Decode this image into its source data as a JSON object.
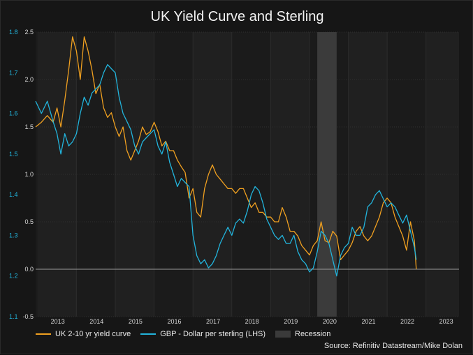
{
  "chart_data": {
    "type": "line",
    "title": "UK Yield Curve and Sterling",
    "source": "Source: Refinitiv Datastream/Mike Dolan",
    "x_ticks": [
      "2013",
      "2014",
      "2015",
      "2016",
      "2017",
      "2018",
      "2019",
      "2020",
      "2021",
      "2022",
      "2023"
    ],
    "xlim": [
      2012.45,
      2023.35
    ],
    "left_axis": {
      "label": "GBP - Dollar per sterling (LHS)",
      "ylim": [
        1.1,
        1.8
      ],
      "ticks": [
        "1.1",
        "1.2",
        "1.3",
        "1.4",
        "1.5",
        "1.6",
        "1.7",
        "1.8"
      ],
      "tick_values": [
        1.1,
        1.2,
        1.3,
        1.4,
        1.5,
        1.6,
        1.7,
        1.8
      ]
    },
    "right_axis": {
      "ylim": [
        -0.5,
        2.5
      ],
      "ticks": [
        "-0.5",
        "0.0",
        "0.5",
        "1.0",
        "1.5",
        "2.0",
        "2.5"
      ],
      "tick_values": [
        -0.5,
        0.0,
        0.5,
        1.0,
        1.5,
        2.0,
        2.5
      ]
    },
    "recession": {
      "label": "Recession",
      "start": 2019.7,
      "end": 2020.2
    },
    "series": [
      {
        "name": "UK 2-10 yr yield curve",
        "axis": "right",
        "color": "#f0a020",
        "x": [
          2012.45,
          2012.6,
          2012.75,
          2012.9,
          2013.0,
          2013.1,
          2013.2,
          2013.3,
          2013.4,
          2013.5,
          2013.6,
          2013.7,
          2013.8,
          2013.9,
          2014.0,
          2014.1,
          2014.2,
          2014.3,
          2014.4,
          2014.5,
          2014.6,
          2014.7,
          2014.8,
          2014.9,
          2015.0,
          2015.1,
          2015.2,
          2015.3,
          2015.4,
          2015.5,
          2015.6,
          2015.7,
          2015.8,
          2015.9,
          2016.0,
          2016.1,
          2016.2,
          2016.3,
          2016.4,
          2016.5,
          2016.6,
          2016.7,
          2016.8,
          2016.9,
          2017.0,
          2017.1,
          2017.2,
          2017.3,
          2017.4,
          2017.5,
          2017.6,
          2017.7,
          2017.8,
          2017.9,
          2018.0,
          2018.1,
          2018.2,
          2018.3,
          2018.4,
          2018.5,
          2018.6,
          2018.7,
          2018.8,
          2018.9,
          2019.0,
          2019.1,
          2019.2,
          2019.3,
          2019.4,
          2019.5,
          2019.6,
          2019.7,
          2019.8,
          2019.9,
          2020.0,
          2020.1,
          2020.2,
          2020.3,
          2020.4,
          2020.5,
          2020.6,
          2020.7,
          2020.8,
          2020.9,
          2021.0,
          2021.1,
          2021.2,
          2021.3,
          2021.4,
          2021.5,
          2021.6,
          2021.7,
          2021.8,
          2021.9,
          2022.0,
          2022.1,
          2022.2,
          2022.25
        ],
        "values": [
          1.5,
          1.55,
          1.62,
          1.55,
          1.7,
          1.5,
          1.78,
          2.1,
          2.45,
          2.3,
          2.0,
          2.45,
          2.3,
          2.1,
          1.85,
          1.95,
          1.7,
          1.6,
          1.65,
          1.5,
          1.4,
          1.5,
          1.25,
          1.15,
          1.25,
          1.35,
          1.5,
          1.42,
          1.45,
          1.55,
          1.45,
          1.3,
          1.35,
          1.25,
          1.25,
          1.15,
          1.08,
          1.02,
          0.75,
          0.85,
          0.6,
          0.55,
          0.85,
          1.0,
          1.1,
          1.0,
          0.95,
          0.9,
          0.85,
          0.85,
          0.8,
          0.85,
          0.85,
          0.75,
          0.65,
          0.7,
          0.6,
          0.6,
          0.55,
          0.55,
          0.5,
          0.5,
          0.65,
          0.55,
          0.4,
          0.4,
          0.35,
          0.25,
          0.2,
          0.15,
          0.25,
          0.3,
          0.5,
          0.3,
          0.28,
          0.4,
          0.35,
          0.1,
          0.15,
          0.2,
          0.28,
          0.4,
          0.45,
          0.35,
          0.3,
          0.35,
          0.45,
          0.55,
          0.7,
          0.75,
          0.7,
          0.55,
          0.45,
          0.35,
          0.2,
          0.5,
          0.3,
          0.0
        ]
      },
      {
        "name": "GBP - Dollar per sterling (LHS)",
        "axis": "left",
        "color": "#22b4dc",
        "x": [
          2012.45,
          2012.6,
          2012.75,
          2012.9,
          2013.0,
          2013.1,
          2013.2,
          2013.3,
          2013.4,
          2013.5,
          2013.6,
          2013.7,
          2013.8,
          2013.9,
          2014.0,
          2014.1,
          2014.2,
          2014.3,
          2014.4,
          2014.5,
          2014.6,
          2014.7,
          2014.8,
          2014.9,
          2015.0,
          2015.1,
          2015.2,
          2015.3,
          2015.4,
          2015.5,
          2015.6,
          2015.7,
          2015.8,
          2015.9,
          2016.0,
          2016.1,
          2016.2,
          2016.3,
          2016.4,
          2016.5,
          2016.6,
          2016.7,
          2016.8,
          2016.9,
          2017.0,
          2017.1,
          2017.2,
          2017.3,
          2017.4,
          2017.5,
          2017.6,
          2017.7,
          2017.8,
          2017.9,
          2018.0,
          2018.1,
          2018.2,
          2018.3,
          2018.4,
          2018.5,
          2018.6,
          2018.7,
          2018.8,
          2018.9,
          2019.0,
          2019.1,
          2019.2,
          2019.3,
          2019.4,
          2019.5,
          2019.6,
          2019.7,
          2019.8,
          2019.9,
          2020.0,
          2020.1,
          2020.2,
          2020.3,
          2020.4,
          2020.5,
          2020.6,
          2020.7,
          2020.8,
          2020.9,
          2021.0,
          2021.1,
          2021.2,
          2021.3,
          2021.4,
          2021.5,
          2021.6,
          2021.7,
          2021.8,
          2021.9,
          2022.0,
          2022.1,
          2022.2,
          2022.25
        ],
        "values": [
          1.63,
          1.6,
          1.63,
          1.58,
          1.55,
          1.5,
          1.55,
          1.52,
          1.53,
          1.55,
          1.6,
          1.64,
          1.62,
          1.65,
          1.66,
          1.67,
          1.7,
          1.72,
          1.71,
          1.7,
          1.64,
          1.6,
          1.58,
          1.56,
          1.52,
          1.5,
          1.53,
          1.54,
          1.55,
          1.56,
          1.52,
          1.5,
          1.53,
          1.48,
          1.45,
          1.42,
          1.44,
          1.43,
          1.42,
          1.3,
          1.25,
          1.23,
          1.24,
          1.22,
          1.23,
          1.25,
          1.28,
          1.3,
          1.32,
          1.3,
          1.33,
          1.34,
          1.33,
          1.36,
          1.4,
          1.42,
          1.41,
          1.38,
          1.34,
          1.32,
          1.3,
          1.29,
          1.3,
          1.28,
          1.28,
          1.3,
          1.26,
          1.24,
          1.23,
          1.21,
          1.22,
          1.26,
          1.31,
          1.3,
          1.28,
          1.24,
          1.2,
          1.25,
          1.27,
          1.28,
          1.32,
          1.3,
          1.3,
          1.32,
          1.37,
          1.38,
          1.4,
          1.41,
          1.39,
          1.37,
          1.38,
          1.37,
          1.35,
          1.33,
          1.35,
          1.31,
          1.27,
          1.24
        ]
      }
    ]
  }
}
